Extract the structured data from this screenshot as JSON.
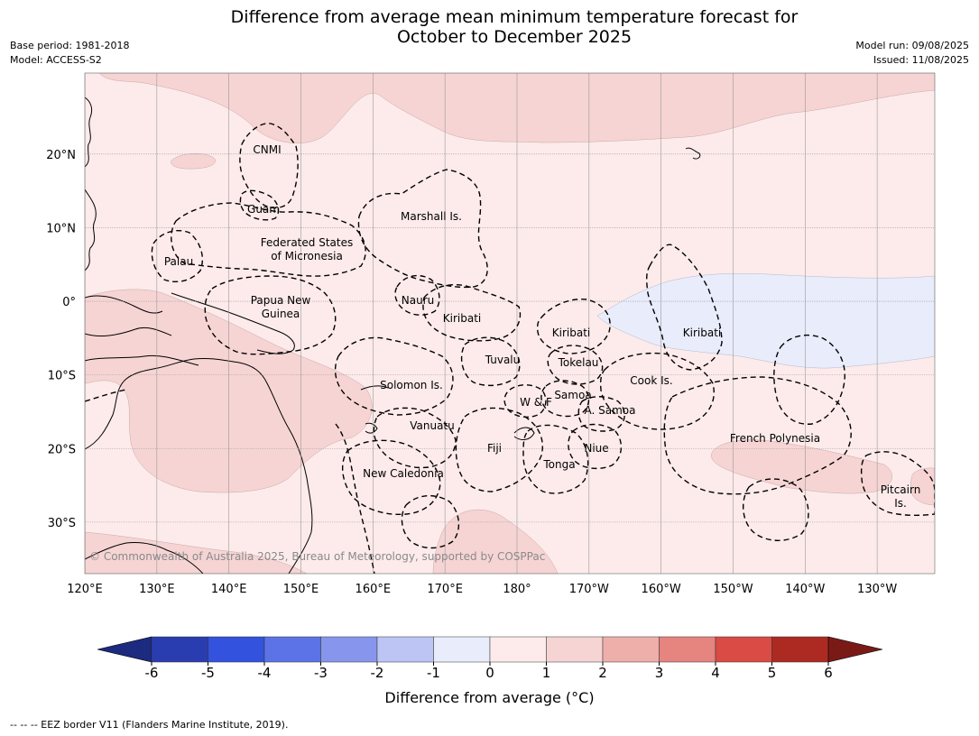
{
  "title_line1": "Difference from average mean minimum temperature forecast for",
  "title_line2": "October to December 2025",
  "meta_left": [
    "Base period: 1981-2018",
    "Model: ACCESS-S2"
  ],
  "meta_right": [
    "Model run: 09/08/2025",
    "Issued: 11/08/2025"
  ],
  "copyright": "© Commonwealth of Australia 2025, Bureau of Meteorology, supported by COSPPac",
  "axes": {
    "lon_ticks": [
      "120°E",
      "130°E",
      "140°E",
      "150°E",
      "160°E",
      "170°E",
      "180°",
      "170°W",
      "160°W",
      "150°W",
      "140°W",
      "130°W"
    ],
    "lat_ticks": [
      "20°N",
      "10°N",
      "0°",
      "10°S",
      "20°S",
      "30°S"
    ],
    "lon_range": [
      120,
      238
    ],
    "lat_range": [
      -37,
      31
    ]
  },
  "regions": [
    {
      "label": "CNMI"
    },
    {
      "label": "Guam"
    },
    {
      "label": "Marshall Is."
    },
    {
      "label": "Federated States"
    },
    {
      "label": "of Micronesia"
    },
    {
      "label": "Palau"
    },
    {
      "label": "Papua New"
    },
    {
      "label": "Guinea"
    },
    {
      "label": "Nauru"
    },
    {
      "label": "Kiribati"
    },
    {
      "label": "Kiribati"
    },
    {
      "label": "Kiribati"
    },
    {
      "label": "Tuvalu"
    },
    {
      "label": "Tokelau"
    },
    {
      "label": "Cook Is."
    },
    {
      "label": "Solomon Is."
    },
    {
      "label": "Samoa"
    },
    {
      "label": "W & F"
    },
    {
      "label": "A. Samoa"
    },
    {
      "label": "Vanuatu"
    },
    {
      "label": "Fiji"
    },
    {
      "label": "Niue"
    },
    {
      "label": "French Polynesia"
    },
    {
      "label": "Tonga"
    },
    {
      "label": "New Caledonia"
    },
    {
      "label": "Pitcairn"
    },
    {
      "label": "Is."
    }
  ],
  "colorbar": {
    "ticks": [
      "-6",
      "-5",
      "-4",
      "-3",
      "-2",
      "-1",
      "0",
      "1",
      "2",
      "3",
      "4",
      "5",
      "6"
    ],
    "colors": [
      "#2a3db0",
      "#3352dd",
      "#5b73e6",
      "#8796ec",
      "#bcc5f4",
      "#e8ecfb",
      "#fcebea",
      "#f6d4d4",
      "#eeafab",
      "#e6847f",
      "#d94b44",
      "#ad2a22"
    ],
    "under_color": "#1c2a80",
    "over_color": "#7a1a17",
    "label": "Difference from average ($^\\circ$C)"
  },
  "colorbar_label": "Difference from average (°C)",
  "footnote": "--  --  -- EEZ border V11 (Flanders Marine Institute, 2019).",
  "colors": {
    "background_anomaly": "#fcebea",
    "warm_anomaly": "#f6d4d4",
    "cool_anomaly": "#e8ecfb"
  }
}
